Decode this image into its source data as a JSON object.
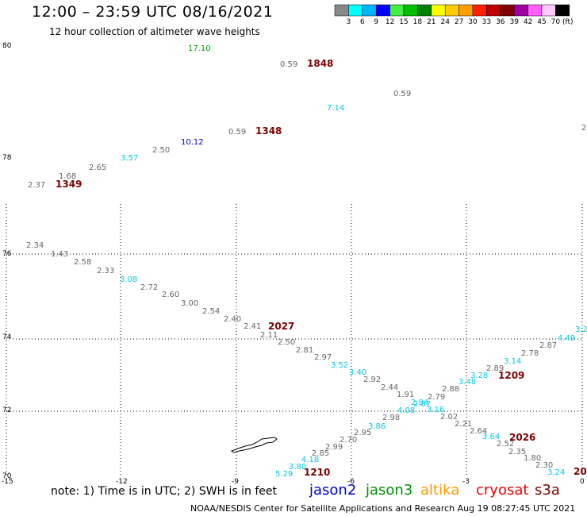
{
  "header": {
    "title": "12:00 – 23:59 UTC 08/16/2021",
    "subtitle": "12 hour collection of altimeter wave heights"
  },
  "colorbar": {
    "labels": [
      "3",
      "6",
      "9",
      "12",
      "15",
      "18",
      "21",
      "24",
      "27",
      "30",
      "33",
      "36",
      "39",
      "42",
      "45",
      "70"
    ],
    "unit": "(ft)",
    "colors": [
      "#888888",
      "#00ffff",
      "#00b4ff",
      "#0000ff",
      "#44ee44",
      "#00c000",
      "#008000",
      "#ffff00",
      "#ffcc00",
      "#ffa000",
      "#ff2000",
      "#c00000",
      "#800000",
      "#a000a0",
      "#ff60ff",
      "#ffc8ff",
      "#000000"
    ]
  },
  "map": {
    "lat_labels": [
      "80",
      "78",
      "76",
      "74",
      "72",
      "70"
    ],
    "lon_labels": [
      "-15",
      "-12",
      "-9",
      "-6",
      "-3",
      "0"
    ],
    "wave_colors": {
      "gray": "#666666",
      "cyan": "#00c8e8",
      "blue": "#0000dd",
      "green": "#00a000",
      "maroon": "#7b0000"
    },
    "wave_heights": [
      {
        "v": "17.10",
        "c": "green"
      },
      {
        "v": "0.59",
        "c": "gray"
      },
      {
        "v": "7.14",
        "c": "cyan"
      },
      {
        "v": "0.59",
        "c": "gray"
      },
      {
        "v": "0.59",
        "c": "gray"
      },
      {
        "v": "10.12",
        "c": "blue"
      },
      {
        "v": "2.50",
        "c": "gray"
      },
      {
        "v": "3.57",
        "c": "cyan"
      },
      {
        "v": "2.65",
        "c": "gray"
      },
      {
        "v": "1.68",
        "c": "gray"
      },
      {
        "v": "2.37",
        "c": "gray"
      },
      {
        "v": "2",
        "c": "gray"
      },
      {
        "v": "2.34",
        "c": "gray"
      },
      {
        "v": "1.43",
        "c": "gray"
      },
      {
        "v": "2.58",
        "c": "gray"
      },
      {
        "v": "2.33",
        "c": "gray"
      },
      {
        "v": "3.08",
        "c": "cyan"
      },
      {
        "v": "2.72",
        "c": "gray"
      },
      {
        "v": "2.60",
        "c": "gray"
      },
      {
        "v": "3.00",
        "c": "gray"
      },
      {
        "v": "2.54",
        "c": "gray"
      },
      {
        "v": "2.40",
        "c": "gray"
      },
      {
        "v": "2.41",
        "c": "gray"
      },
      {
        "v": "2.11",
        "c": "gray"
      },
      {
        "v": "2.50",
        "c": "gray"
      },
      {
        "v": "2.81",
        "c": "gray"
      },
      {
        "v": "2.97",
        "c": "gray"
      },
      {
        "v": "3.52",
        "c": "cyan"
      },
      {
        "v": "3.40",
        "c": "cyan"
      },
      {
        "v": "2.92",
        "c": "gray"
      },
      {
        "v": "2.44",
        "c": "gray"
      },
      {
        "v": "1.91",
        "c": "gray"
      },
      {
        "v": "2.79",
        "c": "gray"
      },
      {
        "v": "2.88",
        "c": "gray"
      },
      {
        "v": "3.48",
        "c": "cyan"
      },
      {
        "v": "3.28",
        "c": "cyan"
      },
      {
        "v": "2.89",
        "c": "gray"
      },
      {
        "v": "3.14",
        "c": "cyan"
      },
      {
        "v": "2.78",
        "c": "gray"
      },
      {
        "v": "2.87",
        "c": "gray"
      },
      {
        "v": "4.49",
        "c": "cyan"
      },
      {
        "v": "3.2",
        "c": "cyan"
      },
      {
        "v": "2.84",
        "c": "cyan"
      },
      {
        "v": "2.87",
        "c": "cyan"
      },
      {
        "v": "3.16",
        "c": "cyan"
      },
      {
        "v": "2.02",
        "c": "gray"
      },
      {
        "v": "2.21",
        "c": "gray"
      },
      {
        "v": "2.64",
        "c": "gray"
      },
      {
        "v": "3.64",
        "c": "cyan"
      },
      {
        "v": "2.52",
        "c": "gray"
      },
      {
        "v": "2.35",
        "c": "gray"
      },
      {
        "v": "1.80",
        "c": "gray"
      },
      {
        "v": "2.30",
        "c": "gray"
      },
      {
        "v": "3.24",
        "c": "cyan"
      },
      {
        "v": "4.08",
        "c": "cyan"
      },
      {
        "v": "2.98",
        "c": "gray"
      },
      {
        "v": "3.86",
        "c": "cyan"
      },
      {
        "v": "2.95",
        "c": "gray"
      },
      {
        "v": "2.70",
        "c": "gray"
      },
      {
        "v": "2.99",
        "c": "gray"
      },
      {
        "v": "2.85",
        "c": "gray"
      },
      {
        "v": "4.18",
        "c": "cyan"
      },
      {
        "v": "3.80",
        "c": "cyan"
      },
      {
        "v": "5.29",
        "c": "cyan"
      }
    ],
    "pass_times": [
      "1848",
      "1348",
      "1349",
      "2027",
      "1209",
      "2026",
      "1210",
      "20"
    ]
  },
  "legend": {
    "note": "note: 1) Time is in UTC; 2) SWH is in feet",
    "satellites": [
      {
        "name": "jason2",
        "color": "#0000cc"
      },
      {
        "name": "jason3",
        "color": "#009000"
      },
      {
        "name": "altika",
        "color": "#ff9900"
      },
      {
        "name": "cryosat",
        "color": "#ee0000"
      },
      {
        "name": "s3a",
        "color": "#7b0000"
      }
    ]
  },
  "footer": {
    "credit": "NOAA/NESDIS Center for Satellite Applications and Research    Aug 19 08:27:45 UTC 2021"
  }
}
